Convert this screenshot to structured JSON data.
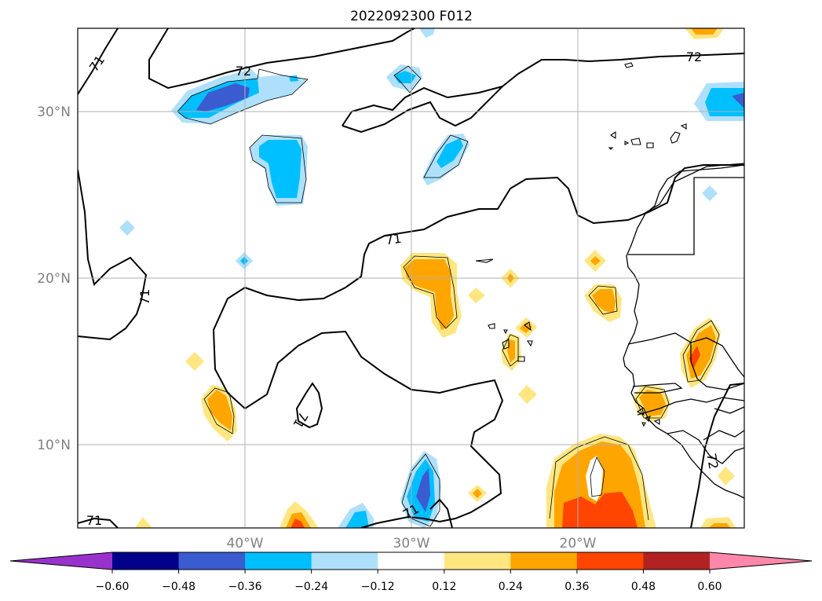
{
  "map": {
    "title": "2022092300 F012",
    "lat_labels": [
      "30°N",
      "20°N",
      "10°N"
    ],
    "lon_labels": [
      "40°W",
      "30°W",
      "20°W"
    ],
    "contour_labels": [
      "71",
      "72",
      "72",
      "71",
      "71",
      "71",
      "71",
      "71",
      "72"
    ],
    "projection": "PlateCarree",
    "extent": {
      "lon_min": -50,
      "lon_max": -10,
      "lat_min": 5,
      "lat_max": 35
    },
    "grid": true
  },
  "colorbar": {
    "tick_labels": [
      "−0.60",
      "−0.48",
      "−0.36",
      "−0.24",
      "−0.12",
      "0.12",
      "0.24",
      "0.36",
      "0.48",
      "0.60"
    ],
    "levels": [
      -0.6,
      -0.48,
      -0.36,
      -0.24,
      -0.12,
      0.12,
      0.24,
      0.36,
      0.48,
      0.6
    ],
    "colors": [
      "#9932cc",
      "#00008b",
      "#3b5bd0",
      "#00bfff",
      "#aee0fb",
      "#ffffff",
      "#ffe680",
      "#ffa500",
      "#ff4500",
      "#b22222",
      "#ff88aa"
    ],
    "extend": "both"
  },
  "palette": {
    "neg_light": "#aee0fb",
    "neg_mid": "#00bfff",
    "neg_dark": "#3b5bd0",
    "pos_light": "#ffe680",
    "pos_mid": "#ffa500",
    "pos_dark": "#ff4500",
    "grid": "#b0b0b0"
  }
}
